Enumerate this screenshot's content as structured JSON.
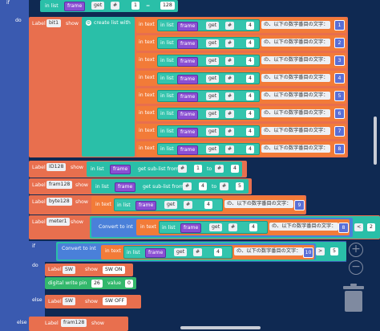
{
  "kw": {
    "if": "if",
    "do": "do",
    "else": "else"
  },
  "blocks": {
    "top": {
      "in_list": "in list",
      "var": "frame",
      "get": "get",
      "op": "#",
      "num": "1",
      "eq": "=",
      "val": "128"
    },
    "bit1": {
      "label": "Label",
      "name": "bit1",
      "show": "show",
      "create": "create list with"
    },
    "create_rows": [
      {
        "in_text": "in text",
        "in_list": "in list",
        "var": "frame",
        "get": "get",
        "op": "#",
        "num": "4",
        "text": "の、以下の数字番目の文字：",
        "index": "1"
      },
      {
        "in_text": "in text",
        "in_list": "in list",
        "var": "frame",
        "get": "get",
        "op": "#",
        "num": "4",
        "text": "の、以下の数字番目の文字：",
        "index": "2"
      },
      {
        "in_text": "in text",
        "in_list": "in list",
        "var": "frame",
        "get": "get",
        "op": "#",
        "num": "4",
        "text": "の、以下の数字番目の文字：",
        "index": "3"
      },
      {
        "in_text": "in text",
        "in_list": "in list",
        "var": "frame",
        "get": "get",
        "op": "#",
        "num": "4",
        "text": "の、以下の数字番目の文字：",
        "index": "4"
      },
      {
        "in_text": "in text",
        "in_list": "in list",
        "var": "frame",
        "get": "get",
        "op": "#",
        "num": "4",
        "text": "の、以下の数字番目の文字：",
        "index": "5"
      },
      {
        "in_text": "in text",
        "in_list": "in list",
        "var": "frame",
        "get": "get",
        "op": "#",
        "num": "4",
        "text": "の、以下の数字番目の文字：",
        "index": "6"
      },
      {
        "in_text": "in text",
        "in_list": "in list",
        "var": "frame",
        "get": "get",
        "op": "#",
        "num": "4",
        "text": "の、以下の数字番目の文字：",
        "index": "7"
      },
      {
        "in_text": "in text",
        "in_list": "in list",
        "var": "frame",
        "get": "get",
        "op": "#",
        "num": "4",
        "text": "の、以下の数字番目の文字：",
        "index": "8"
      }
    ],
    "id128": {
      "label": "Label",
      "name": "ID128",
      "show": "show",
      "in_list": "in list",
      "var": "frame",
      "sub": "get sub-list from",
      "op1": "#",
      "n1": "1",
      "to": "to",
      "op2": "#",
      "n2": "4"
    },
    "fram128": {
      "label": "Label",
      "name": "fram128",
      "show": "show",
      "in_list": "in list",
      "var": "frame",
      "sub": "get sub-list from",
      "op1": "#",
      "n1": "4",
      "to": "to",
      "op2": "#",
      "n2": "5"
    },
    "byte128": {
      "label": "Label",
      "name": "byte128",
      "show": "show",
      "in_text": "in text",
      "in_list": "in list",
      "var": "frame",
      "get": "get",
      "op": "#",
      "num": "4",
      "text": "の、以下の数字番目の文字：",
      "index": "9"
    },
    "meter1": {
      "label": "Label",
      "name": "meter1",
      "show": "show",
      "convert": "Convert to int",
      "in_text": "in text",
      "in_list": "in list",
      "var": "frame",
      "get": "get",
      "op": "#",
      "num": "4",
      "text": "の、以下の数字番目の文字：",
      "index": "8",
      "cmp": "<",
      "val": "2"
    },
    "if2": {
      "convert": "Convert to int",
      "in_text": "in text",
      "in_list": "in list",
      "var": "frame",
      "get": "get",
      "op": "#",
      "num": "4",
      "text": "の、以下の数字番目の文字：",
      "index": "10",
      "cmp": ">",
      "val": "5"
    },
    "sw_on": {
      "label": "Label",
      "name": "SW",
      "show": "show",
      "text": "SW ON"
    },
    "dwrite": {
      "text": "digital write pin",
      "pin": "26",
      "value_lbl": "value",
      "value": "0"
    },
    "sw_off": {
      "label": "Label",
      "name": "SW",
      "show": "show",
      "text": "SW OFF"
    },
    "bottom": {
      "label": "Label",
      "name": "fram128",
      "show": "show"
    }
  },
  "ui": {
    "zoom_in": "+",
    "zoom_out": "−"
  },
  "colors": {
    "workspace": "#0f2952",
    "label_block": "#e86f4e",
    "list_block": "#2abfa8",
    "text_block": "#f27b38",
    "var_block": "#8a4fd3",
    "control": "#3a5ab0"
  }
}
